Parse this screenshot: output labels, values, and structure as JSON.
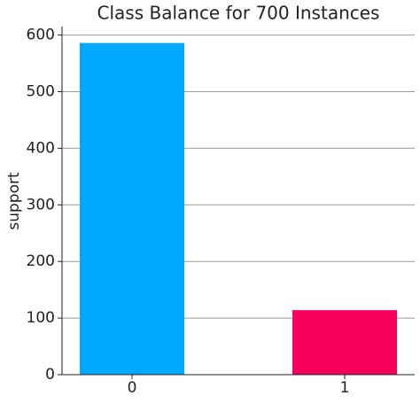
{
  "chart_data": {
    "type": "bar",
    "title": "Class Balance for 700 Instances",
    "y_label": "support",
    "categories": [
      "0",
      "1"
    ],
    "series": [
      {
        "name": "support",
        "colors": [
          "#00a8ff",
          "#f5005a"
        ],
        "values": [
          586,
          114
        ]
      }
    ],
    "ylim": [
      0,
      615
    ],
    "yticks": [
      0,
      100,
      200,
      300,
      400,
      500,
      600
    ],
    "grid": true
  }
}
